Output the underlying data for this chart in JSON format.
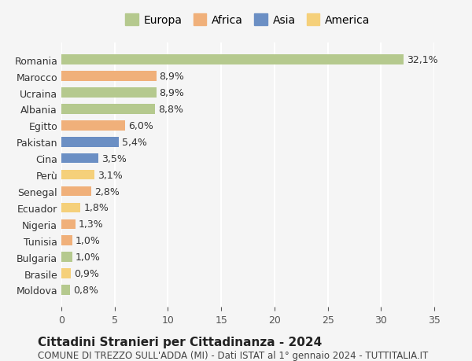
{
  "countries": [
    "Romania",
    "Marocco",
    "Ucraina",
    "Albania",
    "Egitto",
    "Pakistan",
    "Cina",
    "Perù",
    "Senegal",
    "Ecuador",
    "Nigeria",
    "Tunisia",
    "Bulgaria",
    "Brasile",
    "Moldova"
  ],
  "values": [
    32.1,
    8.9,
    8.9,
    8.8,
    6.0,
    5.4,
    3.5,
    3.1,
    2.8,
    1.8,
    1.3,
    1.0,
    1.0,
    0.9,
    0.8
  ],
  "labels": [
    "32,1%",
    "8,9%",
    "8,9%",
    "8,8%",
    "6,0%",
    "5,4%",
    "3,5%",
    "3,1%",
    "2,8%",
    "1,8%",
    "1,3%",
    "1,0%",
    "1,0%",
    "0,9%",
    "0,8%"
  ],
  "continents": [
    "Europa",
    "Africa",
    "Europa",
    "Europa",
    "Africa",
    "Asia",
    "Asia",
    "America",
    "Africa",
    "America",
    "Africa",
    "Africa",
    "Europa",
    "America",
    "Europa"
  ],
  "colors": {
    "Europa": "#b5c98e",
    "Africa": "#f0b07a",
    "Asia": "#6b8fc4",
    "America": "#f5d07a"
  },
  "legend_order": [
    "Europa",
    "Africa",
    "Asia",
    "America"
  ],
  "xlim": [
    0,
    35
  ],
  "xticks": [
    0,
    5,
    10,
    15,
    20,
    25,
    30,
    35
  ],
  "title": "Cittadini Stranieri per Cittadinanza - 2024",
  "subtitle": "COMUNE DI TREZZO SULL'ADDA (MI) - Dati ISTAT al 1° gennaio 2024 - TUTTITALIA.IT",
  "bg_color": "#f5f5f5",
  "grid_color": "#ffffff",
  "bar_height": 0.6,
  "label_fontsize": 9,
  "title_fontsize": 11,
  "subtitle_fontsize": 8.5,
  "ytick_fontsize": 9,
  "xtick_fontsize": 9,
  "legend_fontsize": 10
}
